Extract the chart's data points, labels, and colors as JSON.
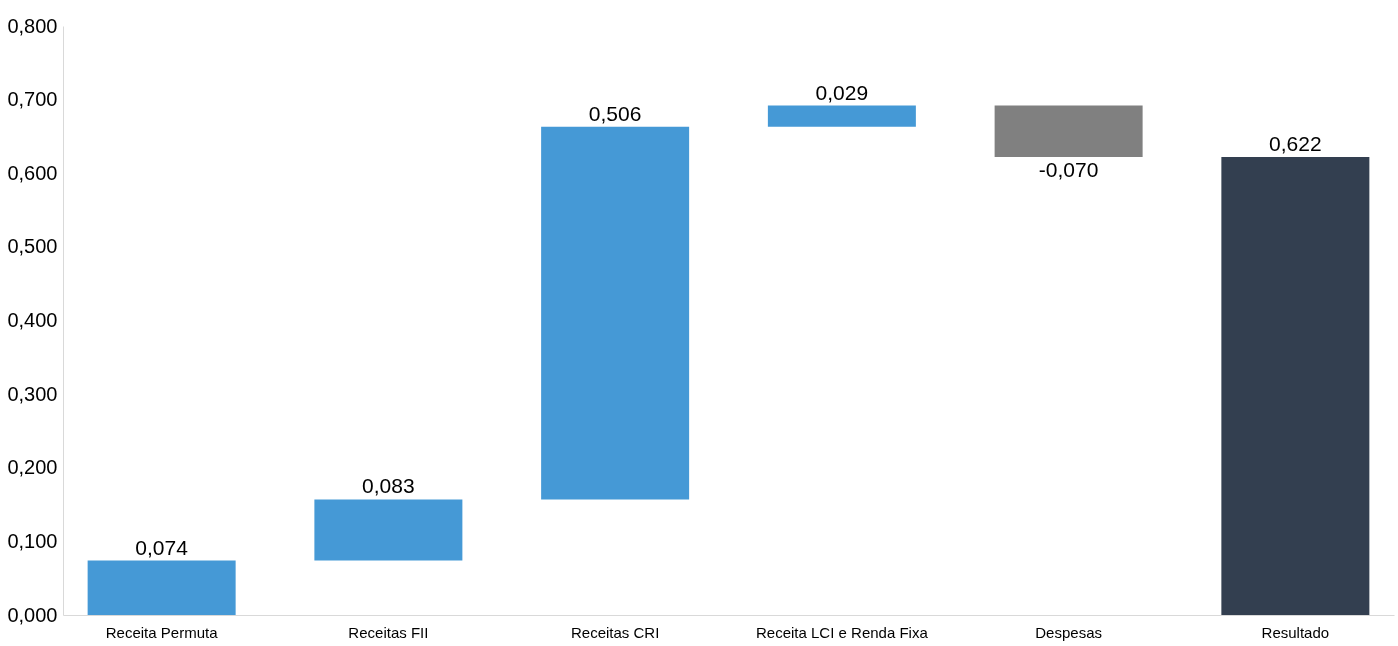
{
  "chart_data": {
    "type": "bar",
    "categories": [
      "Receita Permuta",
      "Receitas FII",
      "Receitas CRI",
      "Receita LCI e Renda Fixa",
      "Despesas",
      "Resultado"
    ],
    "values": [
      0.074,
      0.083,
      0.506,
      0.029,
      -0.07,
      0.622
    ],
    "base": [
      0,
      0.074,
      0.157,
      0.663,
      0.692,
      0
    ],
    "colors": [
      "#4599d6",
      "#4599d6",
      "#4599d6",
      "#4599d6",
      "#808080",
      "#333f50"
    ],
    "value_labels": [
      "0,074",
      "0,083",
      "0,506",
      "0,029",
      "-0,070",
      "0,622"
    ],
    "ylim": [
      0,
      0.8
    ],
    "yticks": [
      {
        "value": 0,
        "label": "0,000"
      },
      {
        "value": 0.1,
        "label": "0,100"
      },
      {
        "value": 0.2,
        "label": "0,200"
      },
      {
        "value": 0.3,
        "label": "0,300"
      },
      {
        "value": 0.4,
        "label": "0,400"
      },
      {
        "value": 0.5,
        "label": "0,500"
      },
      {
        "value": 0.6,
        "label": "0,600"
      },
      {
        "value": 0.7,
        "label": "0,700"
      },
      {
        "value": 0.8,
        "label": "0,800"
      }
    ],
    "grid": false
  }
}
